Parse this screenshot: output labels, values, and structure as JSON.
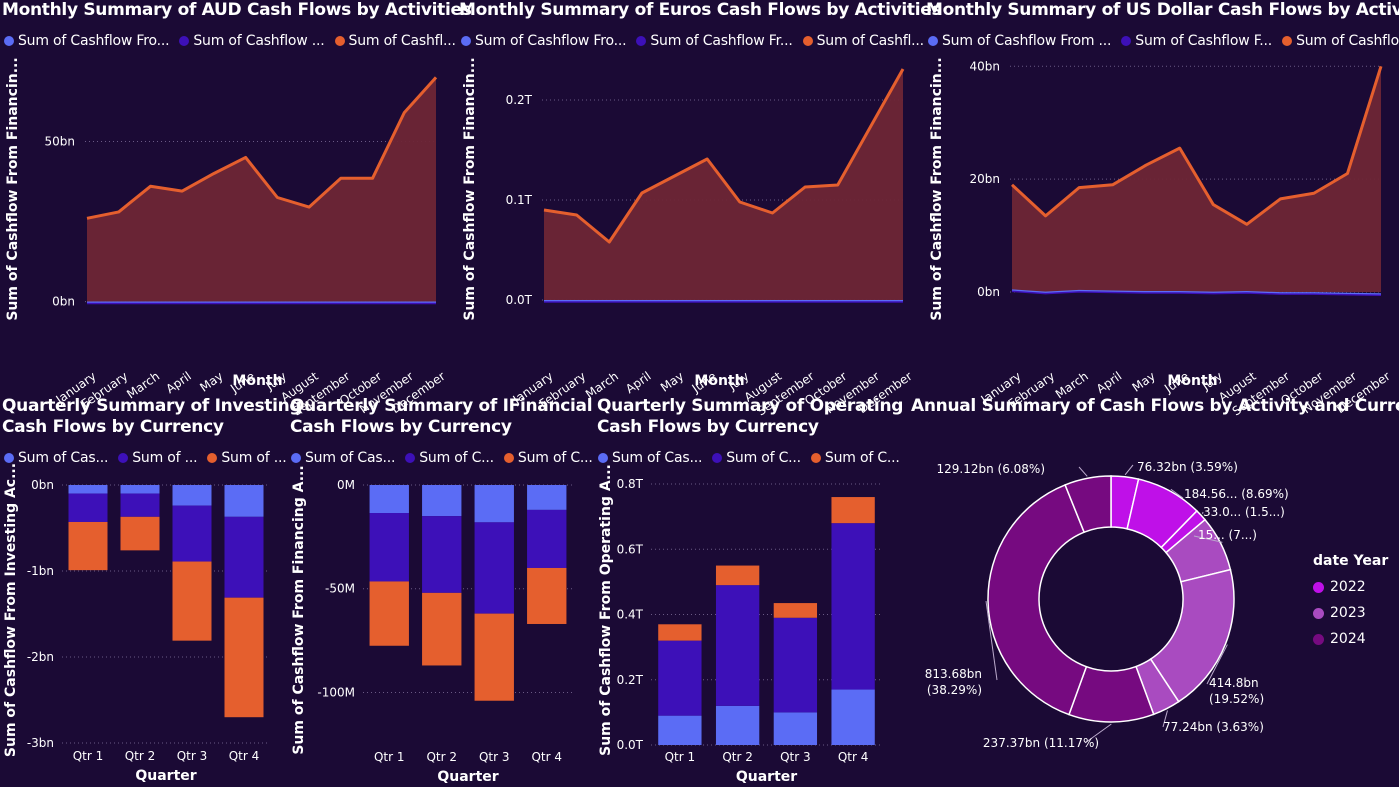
{
  "colors": {
    "s1": "#5b6cf5",
    "s2": "#3d10b8",
    "s3": "#e55f2e",
    "area": "#6e2636",
    "y2022": "#bf10e8",
    "y2023": "#a94bc0",
    "y2024": "#760a80"
  },
  "chart_data": [
    {
      "id": "aud",
      "type": "area",
      "title": "Monthly Summary of AUD Cash Flows by Activities",
      "legend": [
        "Sum of Cashflow Fro...",
        "Sum of Cashflow ...",
        "Sum of Cashfl..."
      ],
      "xlabel": "Month",
      "ylabel": "Sum of Cashflow From Financin...",
      "categories": [
        "January",
        "February",
        "March",
        "April",
        "May",
        "June",
        "July",
        "August",
        "September",
        "October",
        "November",
        "December"
      ],
      "ylim": [
        -12,
        77
      ],
      "yticks": [
        0,
        50
      ],
      "ytick_labels": [
        "0bn",
        "50bn"
      ],
      "series": [
        {
          "values": [
            26,
            28,
            36,
            34.5,
            40,
            45,
            32.5,
            29.5,
            38.5,
            38.5,
            59,
            70
          ]
        },
        {
          "values": [
            -0.3,
            -0.3,
            -0.3,
            -0.3,
            -0.3,
            -0.3,
            -0.3,
            -0.3,
            -0.3,
            -0.3,
            -0.3,
            -0.3
          ]
        }
      ]
    },
    {
      "id": "eur",
      "type": "area",
      "title": "Monthly Summary of Euros Cash Flows by Activities",
      "legend": [
        "Sum of Cashflow Fro...",
        "Sum of Cashflow Fr...",
        "Sum of Cashfl..."
      ],
      "xlabel": "Month",
      "ylabel": "Sum of Cashflow From Financin...",
      "categories": [
        "January",
        "February",
        "March",
        "April",
        "May",
        "June",
        "July",
        "August",
        "September",
        "October",
        "November",
        "December"
      ],
      "ylim": [
        -0.04,
        0.245
      ],
      "yticks": [
        0,
        0.1,
        0.2
      ],
      "ytick_labels": [
        "0.0T",
        "0.1T",
        "0.2T"
      ],
      "series": [
        {
          "values": [
            0.09,
            0.085,
            0.058,
            0.107,
            0.124,
            0.141,
            0.098,
            0.087,
            0.113,
            0.115,
            0.173,
            0.231
          ]
        },
        {
          "values": [
            -0.001,
            -0.001,
            -0.001,
            -0.001,
            -0.001,
            -0.001,
            -0.001,
            -0.001,
            -0.001,
            -0.001,
            -0.001,
            -0.001
          ]
        }
      ]
    },
    {
      "id": "usd",
      "type": "area",
      "title": "Monthly Summary of US Dollar Cash Flows by Activities",
      "legend": [
        "Sum of Cashflow From ...",
        "Sum of Cashflow F...",
        "Sum of Cashflo..."
      ],
      "xlabel": "Month",
      "ylabel": "Sum of Cashflow From Financin...",
      "categories": [
        "January",
        "February",
        "March",
        "April",
        "May",
        "June",
        "July",
        "August",
        "September",
        "October",
        "November",
        "December"
      ],
      "ylim": [
        -8.5,
        42
      ],
      "yticks": [
        0,
        20,
        40
      ],
      "ytick_labels": [
        "0bn",
        "20bn",
        "40bn"
      ],
      "series": [
        {
          "values": [
            19,
            13.5,
            18.5,
            19,
            22.5,
            25.5,
            15.5,
            12,
            16.5,
            17.5,
            21,
            40
          ]
        },
        {
          "values": [
            0.3,
            -0.1,
            0.2,
            0.1,
            0,
            0,
            -0.1,
            0,
            -0.2,
            -0.2,
            -0.3,
            -0.4
          ]
        }
      ]
    },
    {
      "id": "inv",
      "type": "bar",
      "title": [
        "Quarterly Summary of Investing",
        "Cash Flows by Currency"
      ],
      "legend": [
        "Sum of Cas...",
        "Sum of ...",
        "Sum of ..."
      ],
      "xlabel": "Quarter",
      "ylabel": "Sum of Cashflow From Investing Ac...",
      "categories": [
        "Qtr 1",
        "Qtr 2",
        "Qtr 3",
        "Qtr 4"
      ],
      "ylim": [
        -3,
        0
      ],
      "yticks": [
        0,
        -1,
        -2,
        -3
      ],
      "ytick_labels": [
        "0bn",
        "-1bn",
        "-2bn",
        "-3bn"
      ],
      "series": [
        {
          "values": [
            -0.1,
            -0.1,
            -0.24,
            -0.37
          ]
        },
        {
          "values": [
            -0.33,
            -0.27,
            -0.65,
            -0.94
          ]
        },
        {
          "values": [
            -0.56,
            -0.39,
            -0.92,
            -1.39
          ]
        }
      ]
    },
    {
      "id": "fin",
      "type": "bar",
      "title": [
        "Quarterly Summary of IFinancial",
        "Cash Flows by Currency"
      ],
      "legend": [
        "Sum of Cas...",
        "Sum of C...",
        "Sum of C..."
      ],
      "xlabel": "Quarter",
      "ylabel": "Sum of Cashflow From Financing A...",
      "categories": [
        "Qtr 1",
        "Qtr 2",
        "Qtr 3",
        "Qtr 4"
      ],
      "ylim": [
        -121,
        0
      ],
      "yticks": [
        0,
        -50,
        -100
      ],
      "ytick_labels": [
        "0M",
        "-50M",
        "-100M"
      ],
      "series": [
        {
          "values": [
            -13.5,
            -15,
            -18,
            -12
          ]
        },
        {
          "values": [
            -33,
            -37,
            -44,
            -28
          ]
        },
        {
          "values": [
            -31,
            -35,
            -42,
            -27
          ]
        }
      ]
    },
    {
      "id": "ops",
      "type": "bar",
      "title": [
        "Quarterly Summary of Operating",
        "Cash Flows by Currency"
      ],
      "legend": [
        "Sum of Cas...",
        "Sum of C...",
        "Sum of C..."
      ],
      "xlabel": "Quarter",
      "ylabel": "Sum of Cashflow From Operating A...",
      "categories": [
        "Qtr 1",
        "Qtr 2",
        "Qtr 3",
        "Qtr 4"
      ],
      "ylim": [
        0,
        0.8
      ],
      "yticks": [
        0,
        0.2,
        0.4,
        0.6,
        0.8
      ],
      "ytick_labels": [
        "0.0T",
        "0.2T",
        "0.4T",
        "0.6T",
        "0.8T"
      ],
      "series": [
        {
          "values": [
            0.09,
            0.12,
            0.1,
            0.17
          ]
        },
        {
          "values": [
            0.23,
            0.37,
            0.29,
            0.51
          ]
        },
        {
          "values": [
            0.05,
            0.06,
            0.045,
            0.08
          ]
        }
      ]
    },
    {
      "id": "annual",
      "type": "pie",
      "title": "Annual Summary of Cash Flows by Activity and Currency",
      "legend_title": "date Year",
      "legend": [
        "2022",
        "2023",
        "2024"
      ],
      "slices": [
        {
          "year": "2022",
          "value": 76.32,
          "pct": 3.59,
          "label": "76.32bn (3.59%)"
        },
        {
          "year": "2022",
          "value": 184.56,
          "pct": 8.69,
          "label": "184.56... (8.69%)"
        },
        {
          "year": "2022",
          "value": 33.0,
          "pct": 1.55,
          "label": "33.0... (1.5...)"
        },
        {
          "year": "2023",
          "value": 155,
          "pct": 7.3,
          "label": "15... (7...)"
        },
        {
          "year": "2023",
          "value": 414.8,
          "pct": 19.52,
          "label": [
            "414.8bn",
            "(19.52%)"
          ]
        },
        {
          "year": "2023",
          "value": 77.24,
          "pct": 3.63,
          "label": "77.24bn (3.63%)"
        },
        {
          "year": "2024",
          "value": 237.37,
          "pct": 11.17,
          "label": "237.37bn (11.17%)"
        },
        {
          "year": "2024",
          "value": 813.68,
          "pct": 38.29,
          "label": [
            "813.68bn",
            "(38.29%)"
          ]
        },
        {
          "year": "2024",
          "value": 129.12,
          "pct": 6.08,
          "label": "129.12bn (6.08%)"
        }
      ]
    }
  ]
}
